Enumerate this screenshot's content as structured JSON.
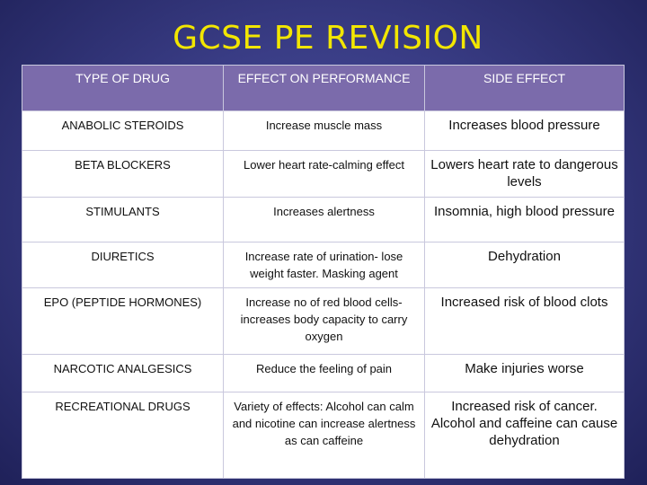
{
  "slide": {
    "title": "GCSE PE REVISION"
  },
  "table": {
    "headers": [
      "TYPE OF DRUG",
      "EFFECT ON PERFORMANCE",
      "SIDE EFFECT"
    ],
    "rows": [
      [
        "ANABOLIC STEROIDS",
        "Increase muscle mass",
        "Increases blood pressure"
      ],
      [
        "BETA BLOCKERS",
        "Lower heart rate-calming effect",
        "Lowers heart rate  to dangerous levels"
      ],
      [
        "STIMULANTS",
        "Increases alertness",
        "Insomnia, high blood pressure"
      ],
      [
        "DIURETICS",
        "Increase rate of urination- lose weight faster. Masking agent",
        "Dehydration"
      ],
      [
        "EPO (PEPTIDE HORMONES)",
        "Increase no of red blood cells- increases body capacity to carry oxygen",
        "Increased risk of blood clots"
      ],
      [
        "NARCOTIC ANALGESICS",
        "Reduce the feeling of pain",
        "Make injuries worse"
      ],
      [
        "RECREATIONAL DRUGS",
        "Variety of effects: Alcohol can calm and nicotine can increase alertness as can caffeine",
        "Increased risk of cancer. Alcohol and caffeine can cause dehydration"
      ]
    ]
  },
  "colors": {
    "title": "#f2e600",
    "header_bg": "#7b6bab",
    "background": "#3a3d86"
  }
}
